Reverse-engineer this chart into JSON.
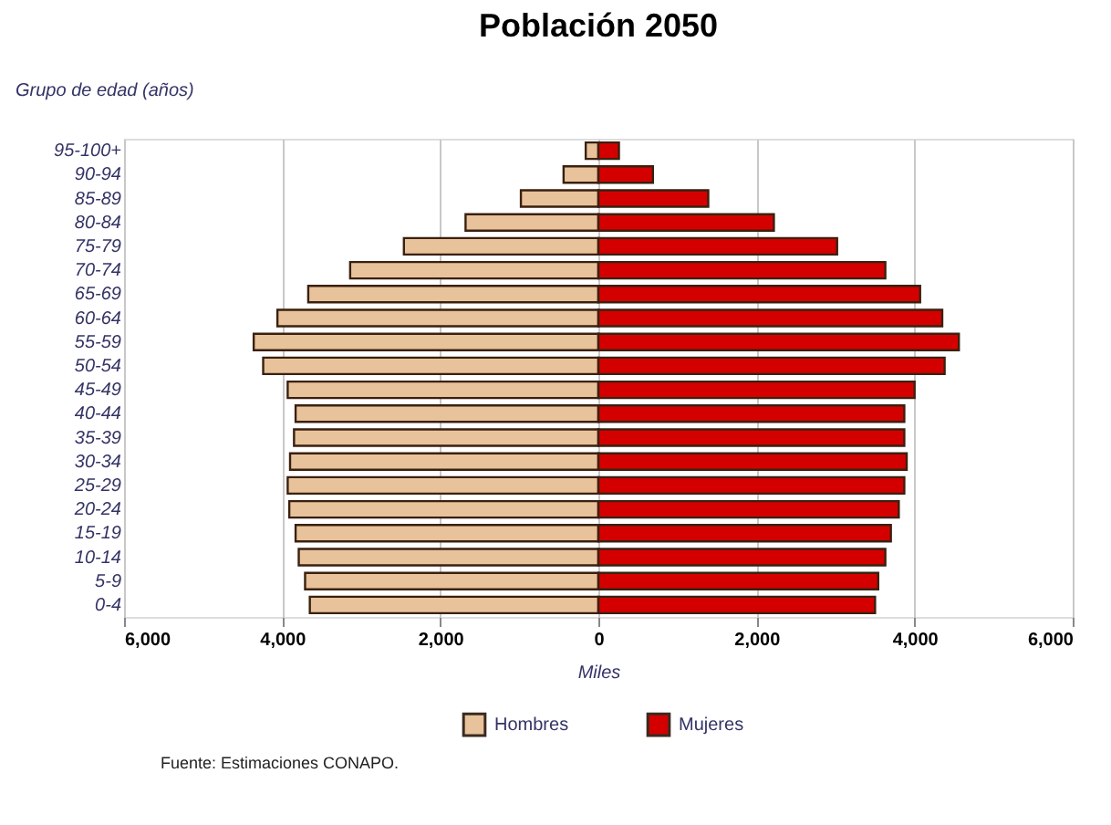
{
  "chart_data": {
    "type": "bar",
    "stacked": true,
    "orientation": "horizontal",
    "title": "Población 2050",
    "ylabel": "Grupo de edad (años)",
    "xlabel": "Miles",
    "categories": [
      "95-100+",
      "90-94",
      "85-89",
      "80-84",
      "75-79",
      "70-74",
      "65-69",
      "60-64",
      "55-59",
      "50-54",
      "45-49",
      "40-44",
      "35-39",
      "30-34",
      "25-29",
      "20-24",
      "15-19",
      "10-14",
      "5-9",
      "0-4"
    ],
    "series": [
      {
        "name": "Hombres",
        "color": "#e8c29a",
        "values": [
          -160,
          -440,
          -980,
          -1680,
          -2460,
          -3140,
          -3670,
          -4060,
          -4360,
          -4240,
          -3930,
          -3830,
          -3850,
          -3900,
          -3930,
          -3910,
          -3830,
          -3790,
          -3710,
          -3650
        ]
      },
      {
        "name": "Mujeres",
        "color": "#d40000",
        "values": [
          260,
          690,
          1390,
          2220,
          3020,
          3630,
          4070,
          4350,
          4560,
          4380,
          4000,
          3870,
          3870,
          3900,
          3870,
          3800,
          3700,
          3630,
          3540,
          3500
        ]
      }
    ],
    "xlim": [
      -6000,
      6000
    ],
    "xticks": [
      {
        "value": -6000,
        "label": "6,000"
      },
      {
        "value": -4000,
        "label": "4,000"
      },
      {
        "value": -2000,
        "label": "2,000"
      },
      0,
      {
        "value": 2000,
        "label": "2,000"
      },
      {
        "value": 4000,
        "label": "4,000"
      },
      {
        "value": 6000,
        "label": "6,000"
      }
    ],
    "grid": "x",
    "legend": "bottom",
    "annotations": [
      "Fuente: Estimaciones CONAPO."
    ]
  }
}
